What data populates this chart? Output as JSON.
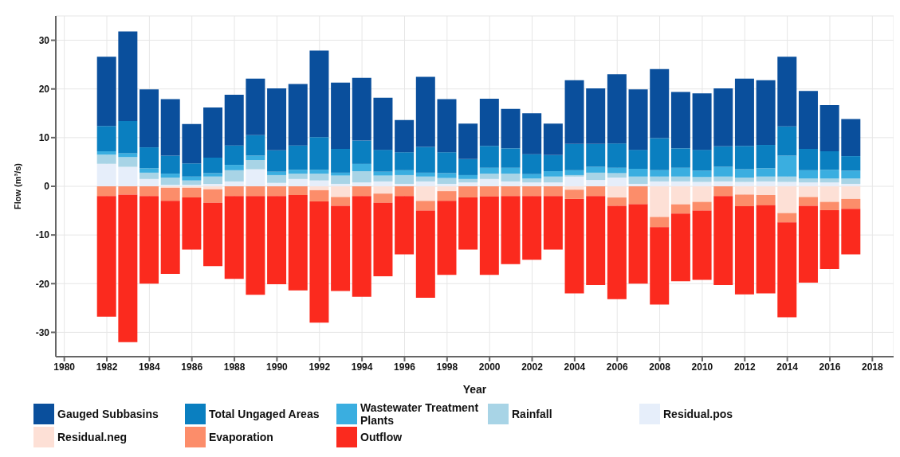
{
  "chart_data": {
    "type": "bar",
    "stacked": true,
    "xlabel": "Year",
    "ylabel": "Flow (m³/s)",
    "x": [
      1982,
      1983,
      1984,
      1985,
      1986,
      1987,
      1988,
      1989,
      1990,
      1991,
      1992,
      1993,
      1994,
      1995,
      1996,
      1997,
      1998,
      1999,
      2000,
      2001,
      2002,
      2003,
      2004,
      2005,
      2006,
      2007,
      2008,
      2009,
      2010,
      2011,
      2012,
      2013,
      2014,
      2015,
      2016,
      2017
    ],
    "xlim": [
      1979.6,
      2019
    ],
    "xticks": [
      1980,
      1982,
      1984,
      1986,
      1988,
      1990,
      1992,
      1994,
      1996,
      1998,
      2000,
      2002,
      2004,
      2006,
      2008,
      2010,
      2012,
      2014,
      2016,
      2018
    ],
    "ylim": [
      -35,
      35
    ],
    "yticks": [
      -30,
      -20,
      -10,
      0,
      10,
      20,
      30
    ],
    "grid": true,
    "legend": "bottom",
    "series": [
      {
        "name": "Residual.pos",
        "color": "#e6eefa",
        "values": [
          4.6,
          4.0,
          1.5,
          0.3,
          0.3,
          0.5,
          1.0,
          3.5,
          0.7,
          1.5,
          1.2,
          0.5,
          0.8,
          1.0,
          0.5,
          1.0,
          0.5,
          0.8,
          1.5,
          1.0,
          0.8,
          0.8,
          2.0,
          1.3,
          1.8,
          0.5,
          1.0,
          1.0,
          0.9,
          1.0,
          0.9,
          1.0,
          0.9,
          0.8,
          0.8,
          0.5
        ]
      },
      {
        "name": "Rainfall",
        "color": "#a8d4e6",
        "values": [
          1.9,
          2.0,
          1.3,
          1.5,
          0.9,
          1.5,
          2.3,
          1.9,
          1.6,
          1.1,
          1.4,
          1.7,
          2.3,
          1.2,
          1.8,
          1.0,
          1.2,
          0.7,
          1.1,
          1.6,
          0.8,
          1.2,
          0.3,
          1.5,
          0.9,
          1.5,
          1.0,
          1.0,
          1.0,
          1.0,
          0.9,
          1.0,
          1.1,
          0.8,
          0.8,
          1.1
        ]
      },
      {
        "name": "Wastewater Treatment Plants",
        "color": "#3aaee0",
        "values": [
          0.7,
          0.8,
          0.9,
          0.8,
          0.8,
          0.7,
          1.1,
          0.9,
          0.7,
          0.8,
          0.8,
          0.6,
          1.5,
          0.8,
          1.0,
          0.8,
          1.0,
          0.8,
          1.2,
          1.2,
          0.9,
          1.1,
          1.0,
          1.2,
          1.1,
          1.6,
          1.3,
          1.8,
          1.3,
          2.0,
          1.7,
          1.7,
          4.3,
          1.7,
          1.8,
          1.6
        ]
      },
      {
        "name": "Total Ungaged Areas",
        "color": "#0a7fc0",
        "values": [
          5.2,
          6.6,
          4.3,
          3.7,
          2.7,
          3.2,
          4.0,
          4.2,
          4.4,
          5.0,
          6.7,
          4.9,
          4.8,
          4.5,
          3.7,
          5.3,
          4.3,
          3.3,
          4.5,
          4.0,
          4.1,
          3.3,
          5.4,
          4.7,
          5.0,
          3.9,
          6.6,
          4.0,
          4.3,
          4.2,
          4.8,
          4.8,
          6.0,
          4.4,
          3.8,
          3.0
        ]
      },
      {
        "name": "Gauged Subbasins",
        "color": "#0a4f9c",
        "values": [
          14.2,
          18.4,
          11.9,
          11.6,
          8.1,
          10.3,
          10.4,
          11.6,
          12.7,
          12.6,
          17.8,
          13.6,
          12.9,
          10.7,
          6.6,
          14.4,
          10.9,
          7.3,
          9.7,
          8.1,
          8.4,
          6.5,
          13.1,
          11.4,
          14.2,
          12.4,
          14.2,
          11.6,
          11.6,
          11.9,
          13.8,
          13.3,
          14.3,
          11.9,
          9.5,
          7.6
        ]
      },
      {
        "name": "Residual.neg",
        "color": "#fde0d6",
        "values": [
          0,
          0,
          0,
          -0.3,
          -0.3,
          -0.6,
          0,
          0,
          0,
          0,
          -0.8,
          -2.2,
          0,
          -1.5,
          0,
          -3.0,
          -1.0,
          0,
          0,
          0,
          0,
          0,
          -0.7,
          0,
          -2.3,
          0,
          -6.3,
          -3.7,
          -3.2,
          0,
          -1.7,
          -1.8,
          -5.5,
          -2.2,
          -3.2,
          -2.6
        ]
      },
      {
        "name": "Evaporation",
        "color": "#fc8d6a",
        "values": [
          -2.0,
          -1.7,
          -2.0,
          -2.7,
          -2.0,
          -2.8,
          -2.0,
          -2.0,
          -2.0,
          -1.8,
          -2.3,
          -1.8,
          -2.0,
          -1.9,
          -2.0,
          -2.0,
          -2.0,
          -2.3,
          -2.1,
          -2.0,
          -2.0,
          -2.0,
          -1.9,
          -2.0,
          -1.7,
          -3.7,
          -2.1,
          -1.9,
          -1.8,
          -2.0,
          -2.4,
          -2.1,
          -1.9,
          -1.8,
          -1.7,
          -2.0
        ]
      },
      {
        "name": "Outflow",
        "color": "#fb2a1e",
        "values": [
          -24.8,
          -30.3,
          -18.0,
          -15.0,
          -10.7,
          -13.0,
          -17.0,
          -20.3,
          -18.1,
          -19.6,
          -24.9,
          -17.5,
          -20.7,
          -15.1,
          -12.0,
          -17.9,
          -15.2,
          -10.7,
          -16.1,
          -14.0,
          -13.1,
          -11.0,
          -19.4,
          -18.3,
          -19.2,
          -16.3,
          -15.9,
          -13.9,
          -14.2,
          -18.3,
          -18.1,
          -18.1,
          -19.5,
          -15.8,
          -12.1,
          -9.4
        ]
      }
    ]
  }
}
